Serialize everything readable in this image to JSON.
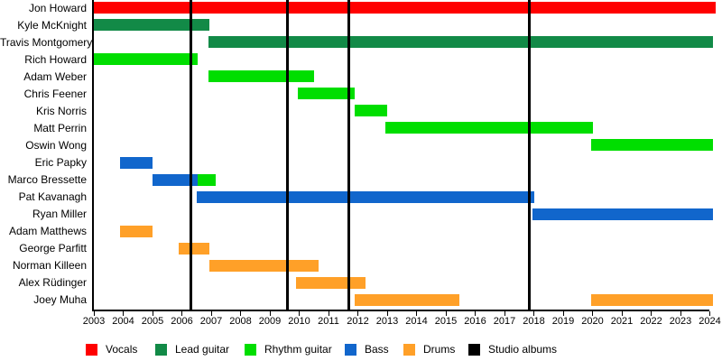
{
  "chart_data": {
    "type": "gantt_timeline",
    "description": "Band members timeline with studio album release markers",
    "x_axis": {
      "min": 2003,
      "max": 2024,
      "tick_years": [
        2003,
        2004,
        2005,
        2006,
        2007,
        2008,
        2009,
        2010,
        2011,
        2012,
        2013,
        2014,
        2015,
        2016,
        2017,
        2018,
        2019,
        2020,
        2021,
        2022,
        2023,
        2024
      ]
    },
    "legend": [
      {
        "role": "vocals",
        "label": "Vocals",
        "color": "#FF0000"
      },
      {
        "role": "lead",
        "label": "Lead guitar",
        "color": "#128A47"
      },
      {
        "role": "rhythm",
        "label": "Rhythm guitar",
        "color": "#00DE00"
      },
      {
        "role": "bass",
        "label": "Bass",
        "color": "#1166CC"
      },
      {
        "role": "drums",
        "label": "Drums",
        "color": "#FFA028"
      },
      {
        "role": "albums",
        "label": "Studio albums",
        "color": "#000000"
      }
    ],
    "album_lines": {
      "label": "Studio albums",
      "color": "#000000",
      "years": [
        2006.3,
        2009.6,
        2011.7,
        2017.85
      ]
    },
    "members": [
      {
        "name": "Jon Howard",
        "segments": [
          {
            "role": "vocals",
            "start": 2003.0,
            "end": 2024.2
          }
        ]
      },
      {
        "name": "Kyle McKnight",
        "segments": [
          {
            "role": "lead",
            "start": 2003.0,
            "end": 2006.95
          }
        ]
      },
      {
        "name": "Travis Montgomery",
        "segments": [
          {
            "role": "lead",
            "start": 2006.9,
            "end": 2024.1
          }
        ]
      },
      {
        "name": "Rich Howard",
        "segments": [
          {
            "role": "rhythm",
            "start": 2003.0,
            "end": 2006.55
          }
        ]
      },
      {
        "name": "Adam Weber",
        "segments": [
          {
            "role": "rhythm",
            "start": 2006.9,
            "end": 2010.5
          }
        ]
      },
      {
        "name": "Chris Feener",
        "segments": [
          {
            "role": "rhythm",
            "start": 2009.95,
            "end": 2011.9
          }
        ]
      },
      {
        "name": "Kris Norris",
        "segments": [
          {
            "role": "rhythm",
            "start": 2011.9,
            "end": 2013.0
          }
        ]
      },
      {
        "name": "Matt Perrin",
        "segments": [
          {
            "role": "rhythm",
            "start": 2012.95,
            "end": 2020.0
          }
        ]
      },
      {
        "name": "Oswin Wong",
        "segments": [
          {
            "role": "rhythm",
            "start": 2019.95,
            "end": 2024.1
          }
        ]
      },
      {
        "name": "Eric Papky",
        "segments": [
          {
            "role": "bass",
            "start": 2003.9,
            "end": 2005.0
          }
        ]
      },
      {
        "name": "Marco Bressette",
        "segments": [
          {
            "role": "bass",
            "start": 2005.0,
            "end": 2006.55
          },
          {
            "role": "rhythm",
            "start": 2006.55,
            "end": 2007.15
          }
        ]
      },
      {
        "name": "Pat Kavanagh",
        "segments": [
          {
            "role": "bass",
            "start": 2006.5,
            "end": 2018.0
          }
        ]
      },
      {
        "name": "Ryan Miller",
        "segments": [
          {
            "role": "bass",
            "start": 2017.95,
            "end": 2024.1
          }
        ]
      },
      {
        "name": "Adam Matthews",
        "segments": [
          {
            "role": "drums",
            "start": 2003.9,
            "end": 2005.0
          }
        ]
      },
      {
        "name": "George Parfitt",
        "segments": [
          {
            "role": "drums",
            "start": 2005.9,
            "end": 2006.95
          }
        ]
      },
      {
        "name": "Norman Killeen",
        "segments": [
          {
            "role": "drums",
            "start": 2006.95,
            "end": 2010.65
          }
        ]
      },
      {
        "name": "Alex Rüdinger",
        "segments": [
          {
            "role": "drums",
            "start": 2009.9,
            "end": 2012.25
          }
        ]
      },
      {
        "name": "Joey Muha",
        "segments": [
          {
            "role": "drums",
            "start": 2011.9,
            "end": 2015.45
          },
          {
            "role": "drums",
            "start": 2019.95,
            "end": 2024.1
          }
        ]
      }
    ]
  }
}
